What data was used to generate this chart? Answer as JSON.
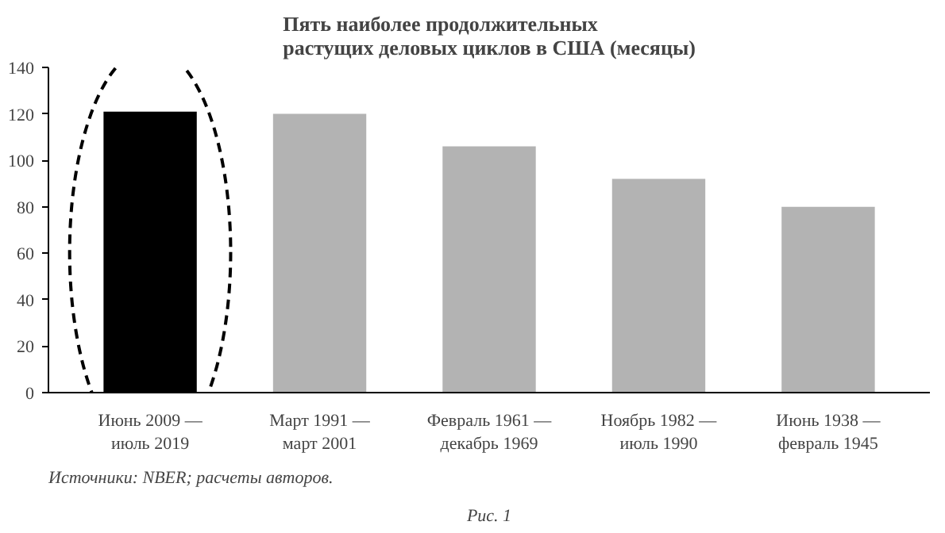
{
  "chart_data": {
    "type": "bar",
    "title": "Пять наиболее продолжительных\nрастущих деловых циклов в США (месяцы)",
    "categories": [
      "Июнь 2009 —\nиюль 2019",
      "Март 1991 —\nмарт 2001",
      "Февраль 1961 —\nдекабрь 1969",
      "Ноябрь 1982 —\nиюль 1990",
      "Июнь 1938 —\nфевраль 1945"
    ],
    "values": [
      121,
      120,
      106,
      92,
      80
    ],
    "colors": [
      "#000000",
      "#b3b3b3",
      "#b3b3b3",
      "#b3b3b3",
      "#b3b3b3"
    ],
    "ylim": [
      0,
      140
    ],
    "yticks": [
      0,
      20,
      40,
      60,
      80,
      100,
      120,
      140
    ],
    "grid": false,
    "annotations": [
      "Источники: NBER; расчеты авторов.",
      "Рис. 1"
    ]
  }
}
